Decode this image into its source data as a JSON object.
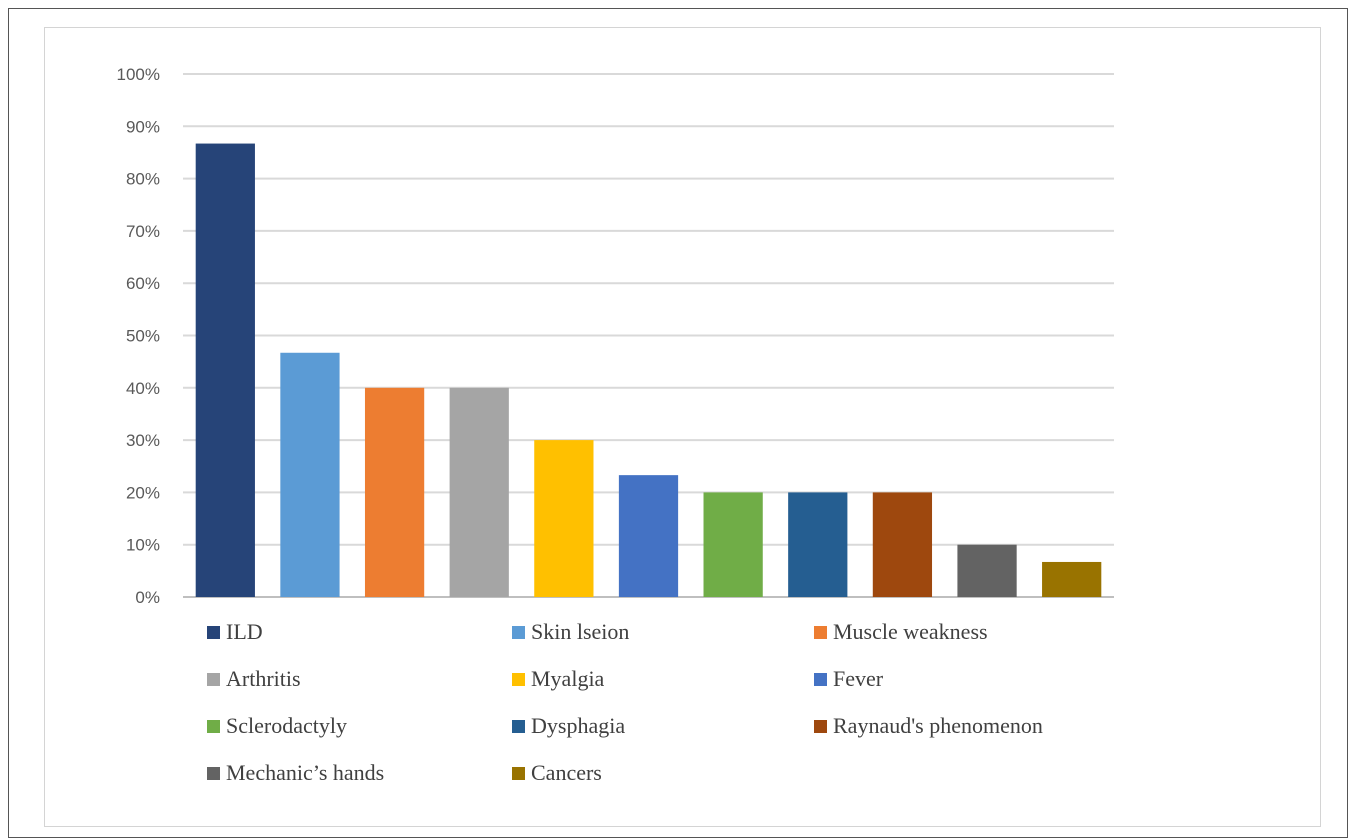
{
  "chart_data": {
    "type": "bar",
    "title": "",
    "xlabel": "",
    "ylabel": "",
    "ylim": [
      0,
      100
    ],
    "yticks": [
      "0%",
      "10%",
      "20%",
      "30%",
      "40%",
      "50%",
      "60%",
      "70%",
      "80%",
      "90%",
      "100%"
    ],
    "grid": true,
    "legend_position": "bottom",
    "categories": [
      "ILD",
      "Skin  lseion",
      "Muscle weakness",
      "Arthritis",
      "Myalgia",
      "Fever",
      "Sclerodactyly",
      "Dysphagia",
      "Raynaud's phenomenon",
      "Mechanic’s hands",
      "Cancers"
    ],
    "values": [
      86.7,
      46.7,
      40,
      40,
      30,
      23.3,
      20,
      20,
      20,
      10,
      6.7
    ],
    "colors": [
      "#264478",
      "#5b9bd5",
      "#ed7d31",
      "#a5a5a5",
      "#ffc000",
      "#4472c4",
      "#70ad47",
      "#255e91",
      "#9e480e",
      "#636363",
      "#997300"
    ]
  }
}
